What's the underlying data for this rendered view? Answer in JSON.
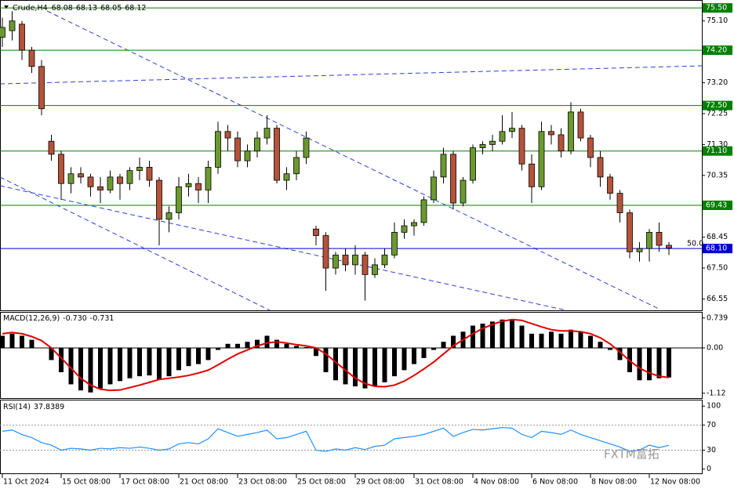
{
  "chart_data": [
    {
      "type": "candlestick",
      "symbol": "Crude,H4",
      "header_values": [
        68.08,
        68.13,
        68.05,
        68.12
      ],
      "categories": [
        "11 Oct 2024",
        null,
        null,
        null,
        null,
        null,
        "15 Oct 08:00",
        null,
        null,
        null,
        null,
        null,
        "17 Oct 08:00",
        null,
        null,
        null,
        null,
        null,
        "21 Oct 08:00",
        null,
        null,
        null,
        null,
        null,
        "23 Oct 08:00",
        null,
        null,
        null,
        null,
        null,
        "25 Oct 08:00",
        null,
        null,
        null,
        null,
        null,
        "29 Oct 08:00",
        null,
        null,
        null,
        null,
        null,
        "31 Oct 08:00",
        null,
        null,
        null,
        null,
        null,
        "4 Nov 08:00",
        null,
        null,
        null,
        null,
        null,
        "6 Nov 08:00",
        null,
        null,
        null,
        null,
        null,
        "8 Nov 08:00",
        null,
        null,
        null,
        null,
        null,
        "12 Nov 08:00",
        null,
        null
      ],
      "open": [
        74.6,
        74.8,
        75.0,
        74.2,
        73.7,
        71.4,
        71.0,
        70.1,
        70.4,
        70.3,
        70.0,
        69.9,
        70.3,
        70.1,
        70.5,
        70.6,
        70.2,
        69.0,
        69.2,
        70.0,
        70.1,
        69.9,
        70.6,
        71.7,
        71.5,
        70.8,
        71.1,
        71.5,
        71.8,
        70.2,
        70.4,
        70.9,
        68.7,
        68.5,
        67.5,
        67.9,
        67.6,
        67.9,
        67.3,
        67.6,
        67.9,
        68.6,
        68.8,
        68.9,
        69.6,
        70.3,
        71.0,
        69.5,
        70.2,
        71.2,
        71.3,
        71.4,
        71.7,
        71.8,
        70.7,
        70.0,
        71.7,
        71.6,
        71.1,
        72.3,
        71.5,
        70.9,
        70.3,
        69.8,
        69.2,
        68.0,
        68.1,
        68.6,
        68.2
      ],
      "high": [
        75.2,
        75.4,
        75.1,
        74.3,
        73.9,
        71.6,
        71.1,
        70.6,
        70.6,
        70.4,
        70.3,
        70.5,
        70.4,
        70.6,
        70.9,
        70.8,
        70.3,
        69.4,
        70.3,
        70.4,
        70.3,
        70.8,
        72.0,
        71.9,
        71.7,
        71.3,
        71.7,
        72.2,
        71.9,
        70.6,
        71.1,
        71.7,
        68.8,
        68.6,
        68.0,
        68.1,
        68.2,
        68.0,
        67.8,
        68.1,
        68.9,
        69.0,
        69.0,
        69.7,
        70.5,
        71.2,
        71.1,
        70.3,
        71.3,
        71.4,
        71.6,
        72.2,
        72.3,
        71.9,
        71.0,
        72.0,
        71.9,
        71.8,
        72.6,
        72.4,
        71.6,
        71.1,
        70.4,
        69.9,
        69.3,
        68.3,
        68.7,
        68.9,
        68.3
      ],
      "low": [
        74.3,
        74.5,
        73.9,
        73.5,
        72.2,
        70.8,
        69.6,
        69.8,
        70.1,
        69.7,
        69.5,
        69.8,
        69.6,
        69.9,
        70.2,
        70.0,
        68.2,
        68.6,
        69.0,
        69.7,
        69.5,
        69.5,
        70.4,
        71.1,
        70.6,
        70.6,
        70.9,
        71.3,
        70.1,
        69.9,
        70.2,
        70.7,
        68.2,
        66.8,
        67.3,
        67.4,
        67.3,
        66.5,
        67.2,
        67.5,
        67.8,
        68.4,
        68.5,
        68.8,
        69.5,
        70.1,
        69.3,
        69.4,
        70.1,
        71.0,
        71.1,
        71.3,
        71.5,
        70.5,
        69.5,
        69.9,
        71.3,
        70.9,
        71.0,
        71.4,
        70.6,
        70.0,
        69.6,
        68.9,
        67.8,
        67.7,
        67.7,
        68.0,
        67.9
      ],
      "close": [
        74.9,
        75.1,
        74.2,
        73.7,
        72.4,
        71.0,
        70.1,
        70.4,
        70.3,
        70.0,
        69.9,
        70.3,
        70.1,
        70.5,
        70.6,
        70.2,
        69.0,
        69.2,
        70.0,
        70.1,
        69.9,
        70.6,
        71.7,
        71.5,
        70.8,
        71.1,
        71.5,
        71.8,
        70.2,
        70.4,
        70.9,
        71.5,
        68.5,
        67.5,
        67.9,
        67.6,
        67.9,
        67.3,
        67.6,
        67.9,
        68.6,
        68.8,
        68.9,
        69.6,
        70.3,
        71.0,
        69.5,
        70.2,
        71.2,
        71.3,
        71.4,
        71.7,
        71.8,
        70.7,
        70.0,
        71.7,
        71.6,
        71.1,
        72.3,
        71.5,
        70.9,
        70.3,
        69.8,
        69.2,
        68.0,
        68.1,
        68.6,
        68.2,
        68.12
      ],
      "up_color": "#6a9a2e",
      "down_color": "#b5533a",
      "ylim": [
        66.2,
        75.72
      ],
      "yticks": [
        {
          "value": 75.1,
          "label": "75.10"
        },
        {
          "value": 73.2,
          "label": "73.20"
        },
        {
          "value": 72.25,
          "label": "72.25"
        },
        {
          "value": 71.3,
          "label": "71.30"
        },
        {
          "value": 70.35,
          "label": "70.35"
        },
        {
          "value": 68.45,
          "label": "68.45"
        },
        {
          "value": 67.5,
          "label": "67.50"
        },
        {
          "value": 66.55,
          "label": "66.55"
        }
      ],
      "levels": [
        {
          "value": 75.5,
          "label": "75.50",
          "color": "#008000"
        },
        {
          "value": 74.2,
          "label": "74.20",
          "color": "#008000"
        },
        {
          "value": 72.5,
          "label": "72.50",
          "color": "#008000"
        },
        {
          "value": 71.1,
          "label": "71.10",
          "color": "#008000"
        },
        {
          "value": 69.43,
          "label": "69.43",
          "color": "#008000"
        },
        {
          "value": 68.1,
          "label": "68.10",
          "color": "#0000cd"
        }
      ],
      "annotation": "50.0"
    },
    {
      "type": "macd",
      "label": "MACD(12,26,9)",
      "header": [
        {
          "value": -0.73,
          "label": "-0.730"
        },
        {
          "value": -0.731,
          "label": "-0.731"
        }
      ],
      "series": [
        {
          "values": [
            0.3,
            0.35,
            0.3,
            0.2,
            0.0,
            -0.3,
            -0.6,
            -0.9,
            -1.05,
            -1.1,
            -1.0,
            -0.9,
            -0.82,
            -0.75,
            -0.7,
            -0.68,
            -0.78,
            -0.7,
            -0.55,
            -0.45,
            -0.4,
            -0.3,
            -0.05,
            0.1,
            0.1,
            0.15,
            0.2,
            0.3,
            0.2,
            0.1,
            0.05,
            0.02,
            -0.2,
            -0.6,
            -0.8,
            -0.9,
            -0.95,
            -1.0,
            -0.95,
            -0.85,
            -0.7,
            -0.55,
            -0.4,
            -0.25,
            -0.05,
            0.15,
            0.3,
            0.4,
            0.55,
            0.6,
            0.65,
            0.7,
            0.7,
            0.55,
            0.35,
            0.35,
            0.4,
            0.35,
            0.45,
            0.4,
            0.3,
            0.15,
            -0.05,
            -0.3,
            -0.6,
            -0.8,
            -0.8,
            -0.75,
            -0.73
          ],
          "color": "#000000"
        },
        {
          "values": [
            0.35,
            0.38,
            0.35,
            0.28,
            0.18,
            0.0,
            -0.25,
            -0.5,
            -0.75,
            -0.92,
            -1.02,
            -1.05,
            -1.04,
            -0.98,
            -0.92,
            -0.85,
            -0.78,
            -0.75,
            -0.72,
            -0.68,
            -0.62,
            -0.55,
            -0.42,
            -0.28,
            -0.15,
            -0.05,
            0.05,
            0.12,
            0.15,
            0.12,
            0.08,
            0.05,
            0.0,
            -0.15,
            -0.35,
            -0.55,
            -0.75,
            -0.88,
            -0.95,
            -0.96,
            -0.92,
            -0.82,
            -0.68,
            -0.52,
            -0.35,
            -0.15,
            0.05,
            0.2,
            0.35,
            0.48,
            0.58,
            0.66,
            0.7,
            0.68,
            0.6,
            0.52,
            0.45,
            0.42,
            0.42,
            0.4,
            0.35,
            0.25,
            0.1,
            -0.1,
            -0.32,
            -0.5,
            -0.62,
            -0.7,
            -0.731
          ],
          "color": "#e00000"
        }
      ],
      "ylim": [
        -1.24,
        0.87
      ],
      "yticks": [
        0.739,
        {
          "value": 0,
          "label": "0.00"
        },
        -1.12
      ],
      "zero_line": true
    },
    {
      "type": "line",
      "label": "RSI(14)",
      "header_value": 37.8389,
      "values": [
        60,
        62,
        55,
        50,
        42,
        38,
        30,
        33,
        32,
        30,
        33,
        32,
        34,
        33,
        35,
        33,
        30,
        32,
        40,
        42,
        40,
        48,
        64,
        58,
        52,
        55,
        58,
        62,
        48,
        50,
        55,
        60,
        30,
        28,
        32,
        30,
        34,
        31,
        36,
        38,
        48,
        50,
        52,
        55,
        60,
        65,
        52,
        58,
        63,
        62,
        64,
        66,
        65,
        55,
        50,
        60,
        58,
        55,
        62,
        55,
        50,
        45,
        40,
        35,
        28,
        30,
        38,
        34,
        37.8389
      ],
      "color": "#1e90ff",
      "ylim": [
        -8,
        109
      ],
      "yticks": [
        100,
        70,
        30,
        0
      ],
      "levels": [
        70,
        30
      ]
    }
  ],
  "watermark": "FXTM富拓"
}
